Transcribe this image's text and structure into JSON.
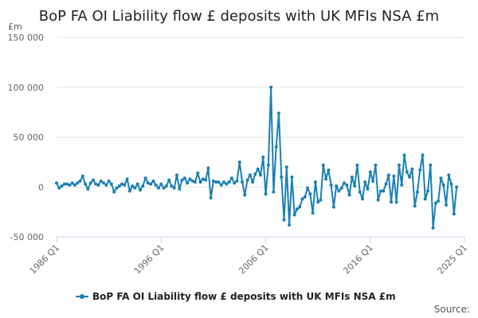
{
  "chart_data": {
    "type": "line",
    "title": "BoP FA OI Liability flow £ deposits with UK MFIs NSA £m",
    "ylabel": "£m",
    "ylim": [
      -50000,
      150000
    ],
    "yticks": [
      150000,
      100000,
      50000,
      0,
      -50000
    ],
    "ytick_labels": [
      "150 000",
      "100 000",
      "50 000",
      "0",
      "-50 000"
    ],
    "xlim": [
      "1986 Q1",
      "2025 Q1"
    ],
    "xticks": [
      "1986 Q1",
      "1996 Q1",
      "2006 Q1",
      "2016 Q1",
      "2025 Q1"
    ],
    "legend_position": "bottom",
    "grid": true,
    "color": "#1a7fb5",
    "series": [
      {
        "name": "BoP FA OI Liability flow £ deposits with UK MFIs NSA £m",
        "start": "1986 Q1",
        "frequency": "quarterly",
        "values": [
          4000,
          -1000,
          1000,
          3000,
          3000,
          2000,
          4000,
          2000,
          4000,
          6000,
          11000,
          3000,
          -2000,
          4000,
          7000,
          3000,
          2000,
          6000,
          4000,
          2000,
          6000,
          3000,
          -5000,
          -1000,
          1000,
          3000,
          2000,
          8000,
          -4000,
          1000,
          -1000,
          3000,
          -3000,
          1000,
          9000,
          4000,
          3000,
          6000,
          2000,
          -1000,
          3000,
          -1000,
          1000,
          7000,
          1000,
          -1000,
          12000,
          -2000,
          7000,
          9000,
          4000,
          8000,
          6000,
          5000,
          14000,
          5000,
          8000,
          7000,
          19000,
          -11000,
          6000,
          5000,
          5000,
          2000,
          5000,
          3000,
          5000,
          9000,
          4000,
          6000,
          25000,
          5000,
          -8000,
          7000,
          12000,
          5000,
          13000,
          18000,
          12000,
          30000,
          -7000,
          22000,
          100000,
          -5000,
          40000,
          74000,
          10000,
          -33000,
          20000,
          -38000,
          10000,
          -28000,
          -22000,
          -20000,
          -12000,
          -10000,
          -1000,
          -7000,
          -26000,
          5000,
          -15000,
          -13000,
          22000,
          8000,
          17000,
          2000,
          -20000,
          1000,
          -4000,
          -1000,
          4000,
          2000,
          -8000,
          10000,
          1000,
          22000,
          -5000,
          -12000,
          5000,
          -2000,
          15000,
          6000,
          22000,
          -13000,
          -4000,
          -4000,
          3000,
          12000,
          -15000,
          11000,
          -15000,
          22000,
          2000,
          32000,
          15000,
          10000,
          18000,
          -19000,
          -5000,
          17000,
          32000,
          -12000,
          -4000,
          22000,
          -41000,
          -16000,
          -14000,
          9000,
          2000,
          -18000,
          12000,
          3000,
          -27000,
          0
        ]
      }
    ]
  },
  "legend": {
    "label": "BoP FA OI Liability flow £ deposits with UK MFIs NSA £m"
  },
  "source": {
    "label": "Source:"
  }
}
